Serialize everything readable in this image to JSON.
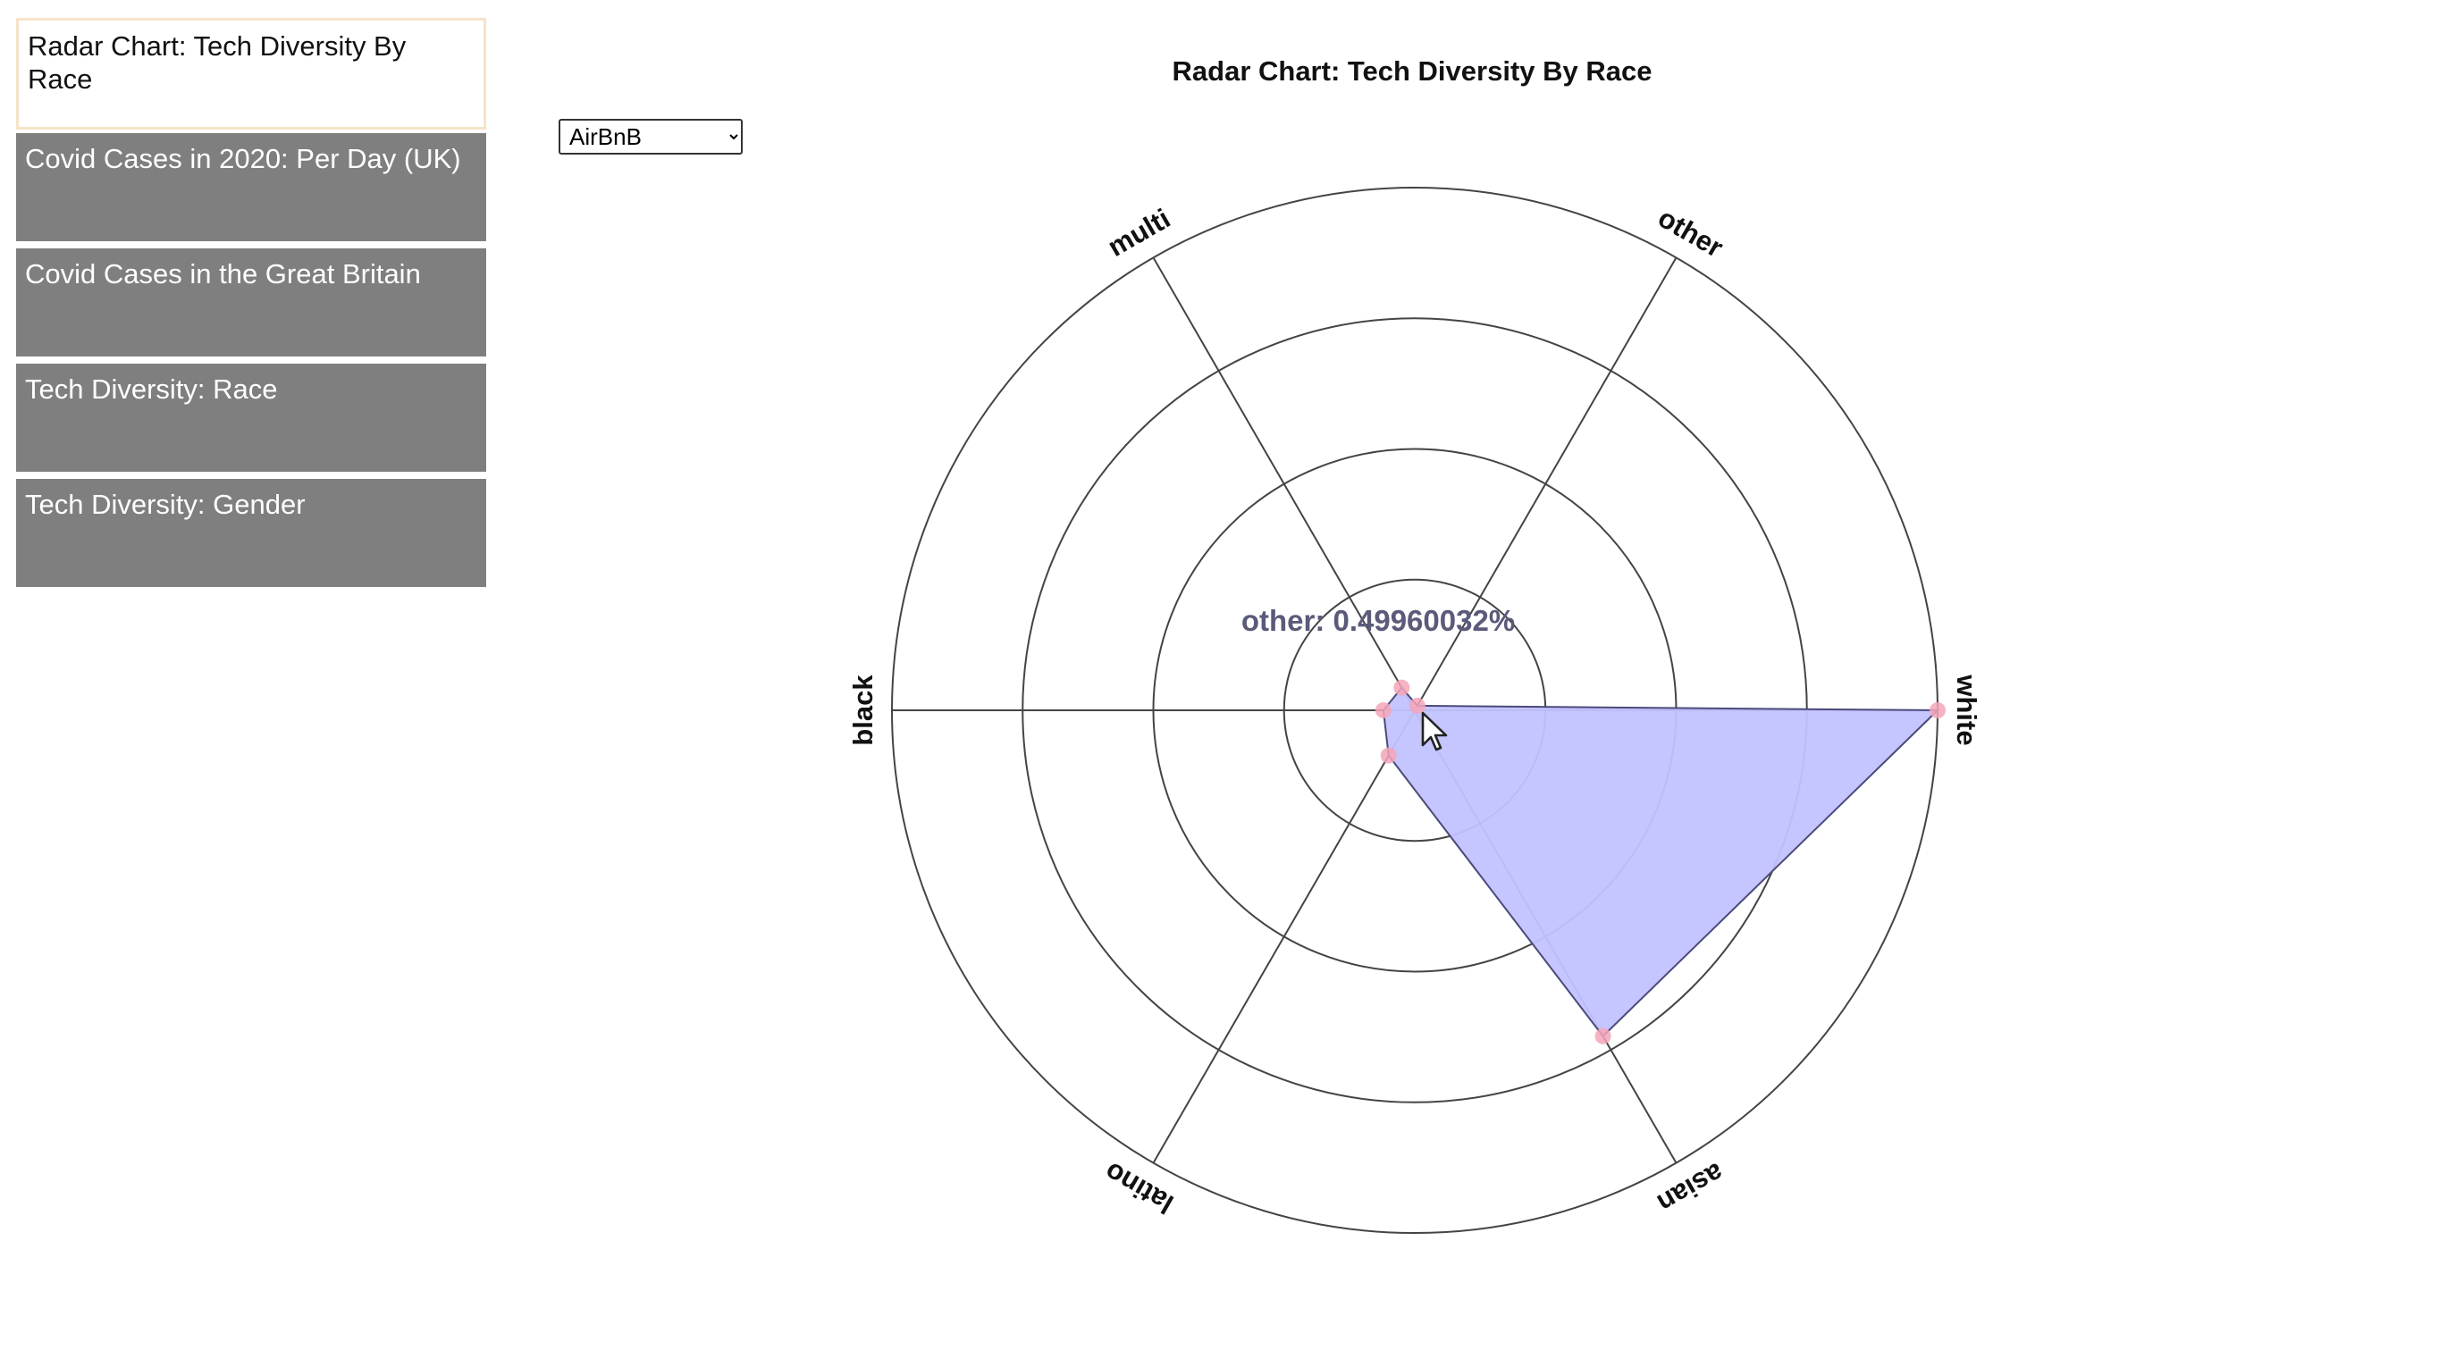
{
  "nav": {
    "items": [
      {
        "label": "Radar Chart: Tech Diversity By Race",
        "active": true
      },
      {
        "label": "Covid Cases in 2020: Per Day (UK)",
        "active": false
      },
      {
        "label": "Covid Cases in the Great Britain",
        "active": false
      },
      {
        "label": "Tech Diversity: Race",
        "active": false
      },
      {
        "label": "Tech Diversity: Gender",
        "active": false
      }
    ]
  },
  "dataset_select": {
    "selected": "AirBnB",
    "options": [
      "AirBnB"
    ]
  },
  "tooltip": {
    "text": "other: 0.49960032%"
  },
  "colors": {
    "area_fill": "#c2c2ff",
    "area_stroke": "#4a4a7a",
    "point": "#f4a6b8",
    "axis": "#444444",
    "nav_bg": "#7f7f7f",
    "nav_active_border": "#f6e3c7"
  },
  "chart_data": {
    "type": "radar",
    "title": "Radar Chart: Tech Diversity By Race",
    "axes": [
      "white",
      "other",
      "multi",
      "black",
      "latino",
      "asian"
    ],
    "series": [
      {
        "values": [
          50,
          0.5,
          2.5,
          3,
          5,
          36
        ]
      }
    ],
    "rlim": [
      0,
      50
    ],
    "rings": [
      12.5,
      25,
      37.5,
      50
    ],
    "grid": true
  }
}
